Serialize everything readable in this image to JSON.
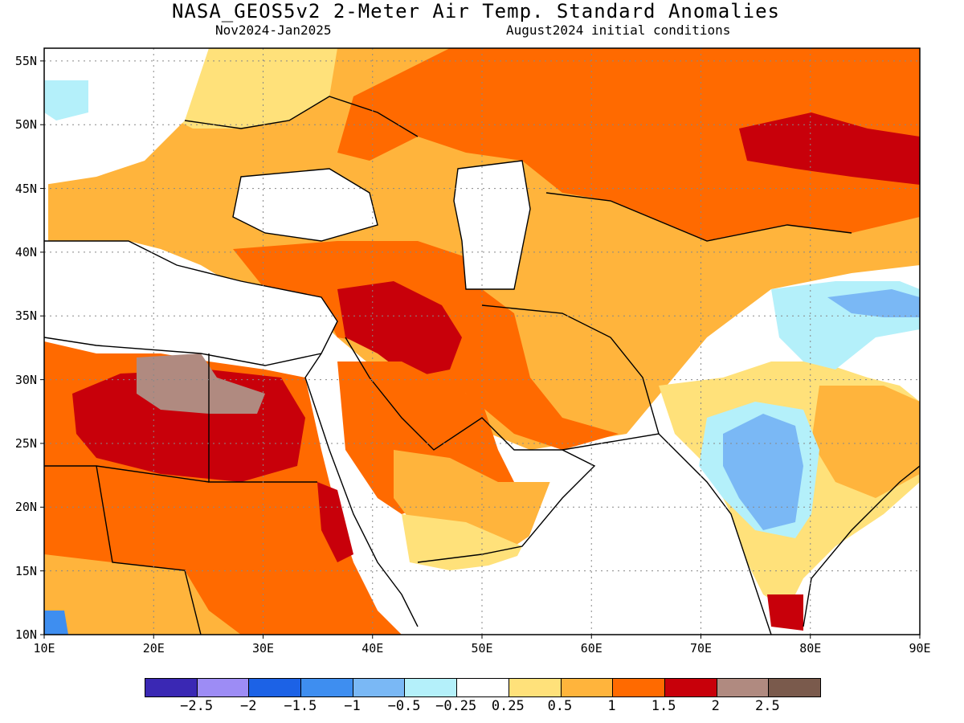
{
  "title": "NASA_GEOS5v2 2-Meter Air Temp. Standard Anomalies",
  "subtitle_left": "Nov2024-Jan2025",
  "subtitle_right": "August2024 initial conditions",
  "map": {
    "lon_range": [
      10,
      90
    ],
    "lat_range": [
      10,
      56
    ],
    "lat_ticks": [
      {
        "value": 55,
        "label": "55N"
      },
      {
        "value": 50,
        "label": "50N"
      },
      {
        "value": 45,
        "label": "45N"
      },
      {
        "value": 40,
        "label": "40N"
      },
      {
        "value": 35,
        "label": "35N"
      },
      {
        "value": 30,
        "label": "30N"
      },
      {
        "value": 25,
        "label": "25N"
      },
      {
        "value": 20,
        "label": "20N"
      },
      {
        "value": 15,
        "label": "15N"
      },
      {
        "value": 10,
        "label": "10N"
      }
    ],
    "lon_ticks": [
      {
        "value": 10,
        "label": "10E"
      },
      {
        "value": 20,
        "label": "20E"
      },
      {
        "value": 30,
        "label": "30E"
      },
      {
        "value": 40,
        "label": "40E"
      },
      {
        "value": 50,
        "label": "50E"
      },
      {
        "value": 60,
        "label": "60E"
      },
      {
        "value": 70,
        "label": "70E"
      },
      {
        "value": 80,
        "label": "80E"
      },
      {
        "value": 90,
        "label": "90E"
      }
    ],
    "grid": "dotted",
    "colors": {
      "neutral": "#ffffff",
      "pos_025": "#ffe17a",
      "pos_05": "#ffb43c",
      "pos_1": "#ff6a00",
      "pos_15": "#c8000a",
      "pos_2": "#b08a80",
      "neg_025": "#b4f0fa",
      "neg_05": "#7ab8f5",
      "neg_1": "#3e8ef0",
      "neg_15": "#1c62e6"
    }
  },
  "colorbar": {
    "colors": [
      "#3a28b4",
      "#9d8cf5",
      "#1c62e6",
      "#3e8ef0",
      "#7ab8f5",
      "#b4f0fa",
      "#ffffff",
      "#ffe17a",
      "#ffb43c",
      "#ff6a00",
      "#c8000a",
      "#b08a80",
      "#7a5a4c"
    ],
    "labels": [
      "-2.5",
      "-2",
      "-1.5",
      "-1",
      "-0.5",
      "-0.25",
      "0.25",
      "0.5",
      "1",
      "1.5",
      "2",
      "2.5"
    ]
  }
}
